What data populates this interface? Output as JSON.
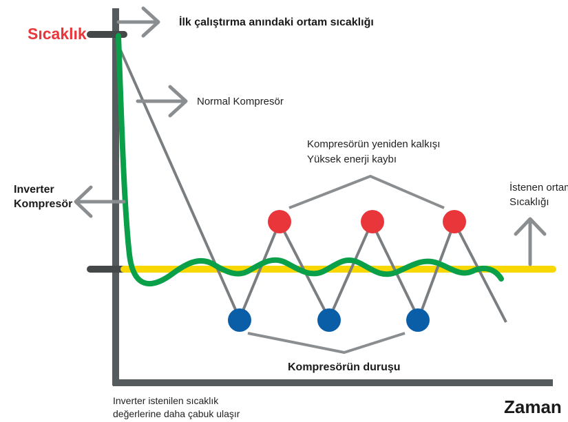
{
  "axes": {
    "y_label": "Sıcaklık",
    "x_label": "Zaman"
  },
  "labels": {
    "initial_temp": "İlk çalıştırma anındaki ortam sıcaklığı",
    "normal_compressor": "Normal Kompresör",
    "restart_line1": "Kompresörün yeniden kalkışı",
    "restart_line2": "Yüksek enerji kaybı",
    "inverter_line1": "Inverter",
    "inverter_line2": "Kompresör",
    "target_line1": "İstenen ortam",
    "target_line2": "Sıcaklığı",
    "stop": "Kompresörün duruşu",
    "bottom_line1": "Inverter istenilen sıcaklık",
    "bottom_line2": "değerlerine daha çabuk ulaşır"
  },
  "colors": {
    "axis": "#555a5c",
    "gray": "#8b8e90",
    "normal_line": "#7b7e80",
    "inverter_curve": "#0aa04a",
    "target_line": "#f8d800",
    "restart_dot": "#e8363a",
    "stop_dot": "#0a5ea8",
    "y_label": "#e8363a",
    "text": "#1a1a1a"
  }
}
